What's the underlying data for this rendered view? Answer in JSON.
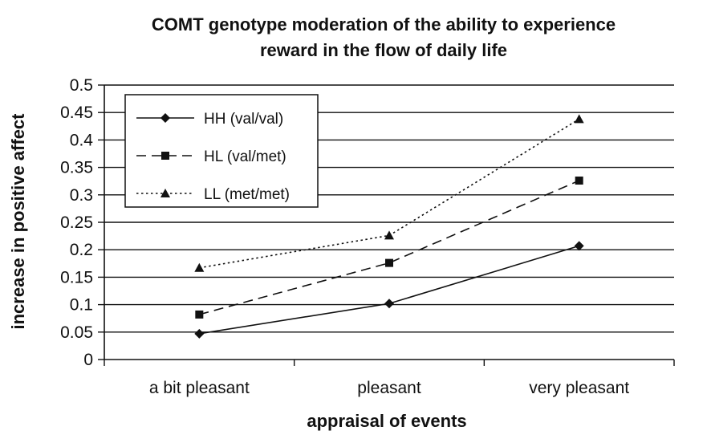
{
  "chart_data": {
    "type": "line",
    "title_lines": [
      "COMT genotype moderation of the ability to experience",
      "reward in the flow of daily life"
    ],
    "xlabel": "appraisal of events",
    "ylabel": "increase in positive affect",
    "categories": [
      "a bit pleasant",
      "pleasant",
      "very pleasant"
    ],
    "ylim": [
      0,
      0.5
    ],
    "yticks": [
      "0",
      "0.05",
      "0.1",
      "0.15",
      "0.2",
      "0.25",
      "0.3",
      "0.35",
      "0.4",
      "0.45",
      "0.5"
    ],
    "grid": true,
    "legend_position": "top-left",
    "series": [
      {
        "name": "HH (val/val)",
        "values": [
          0.047,
          0.102,
          0.207
        ],
        "line": "solid",
        "marker": "diamond"
      },
      {
        "name": "HL (val/met)",
        "values": [
          0.082,
          0.176,
          0.326
        ],
        "line": "dashed",
        "marker": "square"
      },
      {
        "name": "LL (met/met)",
        "values": [
          0.167,
          0.226,
          0.438
        ],
        "line": "dotted",
        "marker": "triangle"
      }
    ],
    "colors": {
      "line": "#111111",
      "grid": "#111111",
      "background": "#ffffff"
    }
  }
}
